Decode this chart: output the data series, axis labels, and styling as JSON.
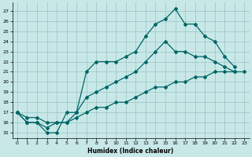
{
  "xlabel": "Humidex (Indice chaleur)",
  "bg_color": "#c8e8e8",
  "grid_color": "#a0c8c8",
  "line_color": "#006666",
  "xlim": [
    -0.5,
    23.5
  ],
  "ylim": [
    14.5,
    27.8
  ],
  "xticks": [
    0,
    1,
    2,
    3,
    4,
    5,
    6,
    7,
    8,
    9,
    10,
    11,
    12,
    13,
    14,
    15,
    16,
    17,
    18,
    19,
    20,
    21,
    22,
    23
  ],
  "yticks": [
    15,
    16,
    17,
    18,
    19,
    20,
    21,
    22,
    23,
    24,
    25,
    26,
    27
  ],
  "series1_x": [
    0,
    1,
    2,
    3,
    4,
    5,
    6,
    7,
    8,
    9,
    10,
    11,
    12,
    13,
    14,
    15,
    16,
    17,
    18,
    19,
    20,
    21,
    22
  ],
  "series1_y": [
    17,
    16,
    16,
    15,
    15,
    17,
    17,
    21,
    22,
    22,
    22,
    22.5,
    23,
    24.5,
    25.7,
    26.2,
    27.2,
    25.7,
    25.7,
    24.5,
    24,
    22.5,
    21.5
  ],
  "series2_x": [
    0,
    1,
    2,
    3,
    4,
    5,
    6,
    7,
    8,
    9,
    10,
    11,
    12,
    13,
    14,
    15,
    16,
    17,
    18,
    19,
    20,
    21,
    22
  ],
  "series2_y": [
    17,
    16,
    16,
    15.5,
    16,
    16,
    17,
    18.5,
    19,
    19.5,
    20,
    20.5,
    21,
    22,
    23,
    24,
    23,
    23,
    22.5,
    22.5,
    22,
    21.5,
    21
  ],
  "series3_x": [
    0,
    1,
    2,
    3,
    4,
    5,
    6,
    7,
    8,
    9,
    10,
    11,
    12,
    13,
    14,
    15,
    16,
    17,
    18,
    19,
    20,
    21,
    22,
    23
  ],
  "series3_y": [
    17,
    16.5,
    16.5,
    16,
    16,
    16,
    16.5,
    17,
    17.5,
    17.5,
    18,
    18,
    18.5,
    19,
    19.5,
    19.5,
    20,
    20,
    20.5,
    20.5,
    21,
    21,
    21,
    21
  ]
}
